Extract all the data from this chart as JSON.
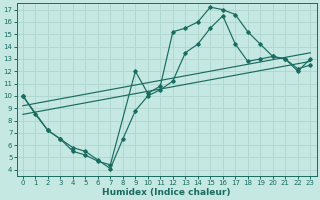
{
  "xlabel": "Humidex (Indice chaleur)",
  "bg_color": "#c5e8e3",
  "grid_color": "#b0d8d0",
  "line_color": "#1a6b60",
  "xlim": [
    -0.5,
    23.5
  ],
  "ylim": [
    3.5,
    17.5
  ],
  "xticks": [
    0,
    1,
    2,
    3,
    4,
    5,
    6,
    7,
    8,
    9,
    10,
    11,
    12,
    13,
    14,
    15,
    16,
    17,
    18,
    19,
    20,
    21,
    22,
    23
  ],
  "yticks": [
    4,
    5,
    6,
    7,
    8,
    9,
    10,
    11,
    12,
    13,
    14,
    15,
    16,
    17
  ],
  "curve1_x": [
    0,
    1,
    2,
    3,
    4,
    5,
    6,
    7,
    9,
    10,
    11,
    12,
    13,
    14,
    15,
    16,
    17,
    18,
    19,
    20,
    21,
    22,
    23
  ],
  "curve1_y": [
    10,
    8.5,
    7.2,
    6.5,
    5.5,
    5.2,
    4.7,
    4.4,
    12.0,
    10.2,
    10.8,
    15.2,
    15.5,
    16.0,
    17.2,
    17.0,
    16.6,
    15.2,
    14.2,
    13.2,
    13.0,
    12.2,
    12.5
  ],
  "curve2_x": [
    0,
    2,
    3,
    4,
    5,
    6,
    7,
    8,
    9,
    10,
    11,
    12,
    13,
    14,
    15,
    16,
    17,
    18,
    19,
    20,
    21,
    22,
    23
  ],
  "curve2_y": [
    10,
    7.2,
    6.5,
    5.8,
    5.5,
    4.8,
    4.1,
    6.5,
    8.8,
    10.0,
    10.5,
    11.2,
    13.5,
    14.2,
    15.5,
    16.5,
    14.2,
    12.8,
    13.0,
    13.2,
    13.0,
    12.0,
    13.0
  ],
  "line1_x": [
    0,
    23
  ],
  "line1_y": [
    9.2,
    13.5
  ],
  "line2_x": [
    0,
    23
  ],
  "line2_y": [
    8.5,
    12.8
  ]
}
